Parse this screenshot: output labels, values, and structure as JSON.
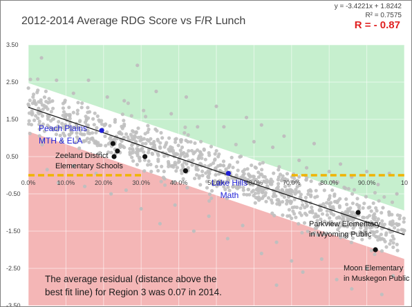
{
  "chart_data": {
    "type": "scatter",
    "title": "2012-2014 Average RDG Score vs F/R Lunch",
    "xlabel": "",
    "ylabel": "",
    "xlim": [
      0,
      1.0
    ],
    "ylim": [
      -3.5,
      3.5
    ],
    "x_ticks": [
      "0.0%",
      "10.0%",
      "20.0%",
      "30.0%",
      "40.0%",
      "50.0%",
      "60.0%",
      "70.0%",
      "80.0%",
      "90.0%",
      "10"
    ],
    "y_ticks": [
      "3.50",
      "2.50",
      "1.50",
      "0.50",
      "-0.50",
      "-1.50",
      "-2.50",
      "-3.50"
    ],
    "grid": true,
    "trendline": {
      "equation": "y = -3.4221x + 1.8242",
      "r_squared_label": "R² = 0.7575",
      "r_label": "R = - 0.87",
      "slope": -3.4221,
      "intercept": 1.8242
    },
    "bands": {
      "upper_color": "#c6efce",
      "middle_color": "#ffffff",
      "lower_color": "#f4b6b6",
      "band_halfwidth": 0.65
    },
    "threshold_line": {
      "y": 0.0,
      "color": "#f0b400",
      "segments": [
        [
          0.0,
          0.3
        ],
        [
          0.7,
          1.0
        ]
      ]
    },
    "highlighted_points": [
      {
        "x": 0.195,
        "y": 1.2,
        "color": "#1f1fd6",
        "label": "Peach Plains MTH & ELA"
      },
      {
        "x": 0.532,
        "y": 0.05,
        "color": "#1f1fd6",
        "label": "Lake Hills Math"
      },
      {
        "x": 0.225,
        "y": 0.85,
        "color": "#111111",
        "label": ""
      },
      {
        "x": 0.237,
        "y": 0.65,
        "color": "#111111",
        "label": ""
      },
      {
        "x": 0.228,
        "y": 0.5,
        "color": "#111111",
        "label": ""
      },
      {
        "x": 0.31,
        "y": 0.5,
        "color": "#111111",
        "label": ""
      },
      {
        "x": 0.418,
        "y": 0.12,
        "color": "#111111",
        "label": ""
      },
      {
        "x": 0.877,
        "y": -1.0,
        "color": "#111111",
        "label": "Parkview Elementary in Wyoming Public"
      },
      {
        "x": 0.923,
        "y": -2.0,
        "color": "#111111",
        "label": "Moon Elementary in Muskegon Public"
      }
    ],
    "annotations": [
      "Zeeland District Elementary Schools",
      "The average residual (distance above the best fit line) for Region 3 was 0.07 in 2014."
    ],
    "scatter_color": "#bfbfbf",
    "scatter_outliers": [
      [
        0.035,
        3.15
      ],
      [
        0.075,
        2.55
      ],
      [
        0.12,
        2.2
      ],
      [
        0.16,
        2.55
      ],
      [
        0.21,
        2.1
      ],
      [
        0.255,
        2.0
      ],
      [
        0.29,
        2.95
      ],
      [
        0.34,
        2.25
      ],
      [
        0.38,
        1.65
      ],
      [
        0.42,
        2.1
      ],
      [
        0.45,
        1.3
      ],
      [
        0.5,
        1.85
      ],
      [
        0.52,
        1.3
      ],
      [
        0.58,
        1.55
      ],
      [
        0.6,
        0.9
      ],
      [
        0.62,
        1.35
      ],
      [
        0.65,
        0.75
      ],
      [
        0.68,
        1.05
      ],
      [
        0.72,
        0.4
      ],
      [
        0.74,
        0.2
      ],
      [
        0.76,
        0.85
      ],
      [
        0.8,
        0.1
      ],
      [
        0.83,
        0.3
      ],
      [
        0.86,
        -0.05
      ],
      [
        0.9,
        0.1
      ],
      [
        0.93,
        -0.25
      ],
      [
        0.96,
        0.05
      ],
      [
        0.98,
        -0.5
      ],
      [
        0.05,
        0.15
      ],
      [
        0.08,
        -0.2
      ],
      [
        0.12,
        0.25
      ],
      [
        0.15,
        -0.3
      ],
      [
        0.18,
        0.05
      ],
      [
        0.22,
        -0.5
      ],
      [
        0.26,
        -0.4
      ],
      [
        0.3,
        -0.9
      ],
      [
        0.35,
        -1.3
      ],
      [
        0.39,
        -0.8
      ],
      [
        0.44,
        -1.5
      ],
      [
        0.48,
        -1.1
      ],
      [
        0.53,
        -1.7
      ],
      [
        0.57,
        -1.35
      ],
      [
        0.62,
        -2.1
      ],
      [
        0.66,
        -1.8
      ],
      [
        0.7,
        -2.3
      ],
      [
        0.73,
        -2.6
      ],
      [
        0.78,
        -2.25
      ],
      [
        0.82,
        -2.8
      ],
      [
        0.86,
        -3.05
      ],
      [
        0.9,
        -2.5
      ],
      [
        0.94,
        -3.2
      ],
      [
        0.97,
        -2.7
      ],
      [
        0.66,
        -2.95
      ]
    ]
  },
  "notes": {
    "title": "2012-2014 Average RDG Score vs F/R Lunch",
    "equation": "y = -3.4221x + 1.8242",
    "r_squared": "R² = 0.7575",
    "r_value": "R = - 0.87",
    "peach_plains_1": "Peach Plains",
    "peach_plains_2": "MTH & ELA",
    "zeeland_1": "Zeeland District",
    "zeeland_2": "Elementary Schools",
    "lake_hills_1": "Lake Hills",
    "lake_hills_2": "Math",
    "parkview_1": "Parkview Elementary",
    "parkview_2": "in Wyoming Public",
    "moon_1": "Moon Elementary",
    "moon_2": "in Muskegon Public",
    "residual": "The average residual (distance above the\nbest fit line) for Region 3 was 0.07 in 2014."
  }
}
